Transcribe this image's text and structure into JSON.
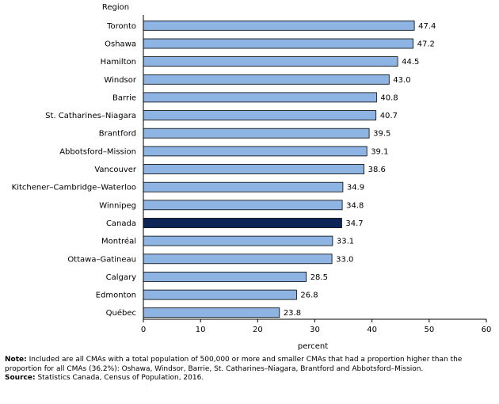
{
  "chart_data": {
    "type": "bar",
    "orientation": "horizontal",
    "y_axis_title": "Region",
    "xlabel": "percent",
    "xlim": [
      0,
      60
    ],
    "xticks": [
      0,
      10,
      20,
      30,
      40,
      50,
      60
    ],
    "categories": [
      "Toronto",
      "Oshawa",
      "Hamilton",
      "Windsor",
      "Barrie",
      "St. Catharines–Niagara",
      "Brantford",
      "Abbotsford–Mission",
      "Vancouver",
      "Kitchener–Cambridge–Waterloo",
      "Winnipeg",
      "Canada",
      "Montréal",
      "Ottawa–Gatineau",
      "Calgary",
      "Edmonton",
      "Québec"
    ],
    "values": [
      47.4,
      47.2,
      44.5,
      43.0,
      40.8,
      40.7,
      39.5,
      39.1,
      38.6,
      34.9,
      34.8,
      34.7,
      33.1,
      33.0,
      28.5,
      26.8,
      23.8
    ],
    "value_labels": [
      "47.4",
      "47.2",
      "44.5",
      "43.0",
      "40.8",
      "40.7",
      "39.5",
      "39.1",
      "38.6",
      "34.9",
      "34.8",
      "34.7",
      "33.1",
      "33.0",
      "28.5",
      "26.8",
      "23.8"
    ],
    "highlight_category": "Canada",
    "colors": {
      "bar": "#8eb4e3",
      "highlight": "#0e2557",
      "outline": "#000000"
    },
    "grid": false
  },
  "notes": {
    "note_label": "Note:",
    "note_text": "Included are all CMAs with a total population of 500,000 or more and smaller CMAs that had a proportion higher than the proportion for all CMAs (36.2%): Oshawa, Windsor, Barrie, St. Catharines–Niagara, Brantford and Abbotsford–Mission.",
    "source_label": "Source:",
    "source_text": "Statistics Canada, Census of Population, 2016."
  }
}
